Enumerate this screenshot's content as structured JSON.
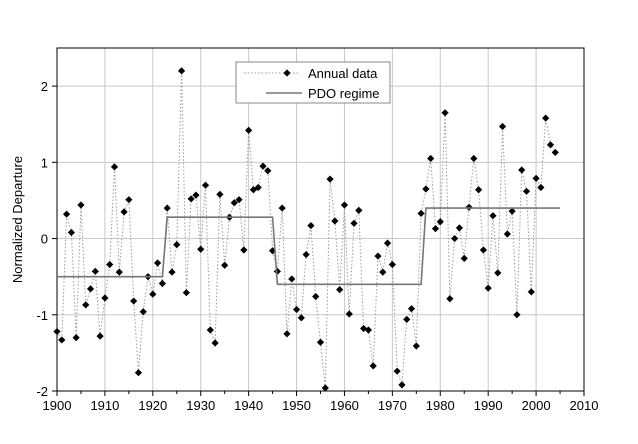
{
  "chart_data": {
    "type": "line",
    "title": "",
    "xlabel": "",
    "ylabel": "Normalized Departure",
    "xlim": [
      1900,
      2010
    ],
    "ylim": [
      -2,
      2.5
    ],
    "xticks": [
      1900,
      1910,
      1920,
      1930,
      1940,
      1950,
      1960,
      1970,
      1980,
      1990,
      2000,
      2010
    ],
    "yticks": [
      -2,
      -1,
      0,
      1,
      2
    ],
    "grid": true,
    "legend_position": "top-center",
    "colors": {
      "annual": "#000000",
      "annual_line": "#9a9a9a",
      "regime": "#777777",
      "grid": "#c8c8c8"
    },
    "series": [
      {
        "name": "Annual data",
        "marker": "diamond",
        "line": "dotted",
        "x": [
          1900,
          1901,
          1902,
          1903,
          1904,
          1905,
          1906,
          1907,
          1908,
          1909,
          1910,
          1911,
          1912,
          1913,
          1914,
          1915,
          1916,
          1917,
          1918,
          1919,
          1920,
          1921,
          1922,
          1923,
          1924,
          1925,
          1926,
          1927,
          1928,
          1929,
          1930,
          1931,
          1932,
          1933,
          1934,
          1935,
          1936,
          1937,
          1938,
          1939,
          1940,
          1941,
          1942,
          1943,
          1944,
          1945,
          1946,
          1947,
          1948,
          1949,
          1950,
          1951,
          1952,
          1953,
          1954,
          1955,
          1956,
          1957,
          1958,
          1959,
          1960,
          1961,
          1962,
          1963,
          1964,
          1965,
          1966,
          1967,
          1968,
          1969,
          1970,
          1971,
          1972,
          1973,
          1974,
          1975,
          1976,
          1977,
          1978,
          1979,
          1980,
          1981,
          1982,
          1983,
          1984,
          1985,
          1986,
          1987,
          1988,
          1989,
          1990,
          1991,
          1992,
          1993,
          1994,
          1995,
          1996,
          1997,
          1998,
          1999,
          2000,
          2001,
          2002,
          2003,
          2004
        ],
        "y": [
          -1.22,
          -1.33,
          0.32,
          0.08,
          -1.3,
          0.44,
          -0.87,
          -0.66,
          -0.43,
          -1.28,
          -0.78,
          -0.34,
          0.94,
          -0.44,
          0.35,
          0.51,
          -0.82,
          -1.76,
          -0.96,
          -0.5,
          -0.73,
          -0.32,
          -0.59,
          0.4,
          -0.44,
          -0.08,
          2.2,
          -0.71,
          0.52,
          0.57,
          -0.14,
          0.7,
          -1.2,
          -1.37,
          0.58,
          -0.35,
          0.28,
          0.47,
          0.51,
          -0.15,
          1.42,
          0.64,
          0.67,
          0.95,
          0.89,
          -0.16,
          -0.43,
          0.4,
          -1.25,
          -0.53,
          -0.93,
          -1.04,
          -0.21,
          0.17,
          -0.76,
          -1.36,
          -1.96,
          0.78,
          0.23,
          -0.67,
          0.44,
          -0.99,
          0.2,
          0.37,
          -1.18,
          -1.2,
          -1.67,
          -0.23,
          -0.44,
          -0.06,
          -0.34,
          -1.74,
          -1.92,
          -1.06,
          -0.92,
          -1.41,
          0.33,
          0.65,
          1.05,
          0.13,
          0.22,
          1.65,
          -0.79,
          0.0,
          0.14,
          -0.26,
          0.41,
          1.05,
          0.64,
          -0.15,
          -0.65,
          0.3,
          -0.45,
          1.47,
          0.06,
          0.36,
          -1.0,
          0.9,
          0.62,
          -0.7,
          0.79,
          0.67,
          1.58,
          1.23,
          1.13
        ]
      },
      {
        "name": "PDO regime",
        "marker": "none",
        "line": "solid",
        "x": [
          1900,
          1922,
          1923,
          1945,
          1946,
          1976,
          1977,
          2005
        ],
        "y": [
          -0.5,
          -0.5,
          0.28,
          0.28,
          -0.6,
          -0.6,
          0.4,
          0.4
        ]
      }
    ]
  }
}
